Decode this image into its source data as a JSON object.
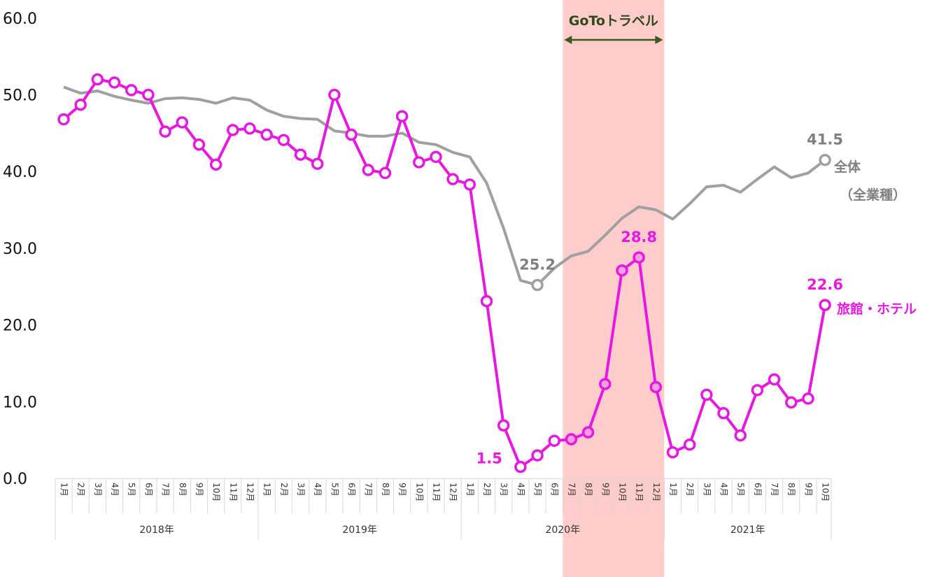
{
  "chart_data": {
    "type": "line",
    "ylim": [
      0,
      60
    ],
    "yticks": [
      "0.0",
      "10.0",
      "20.0",
      "30.0",
      "40.0",
      "50.0",
      "60.0"
    ],
    "x_month_labels": [
      "1月",
      "2月",
      "3月",
      "4月",
      "5月",
      "6月",
      "7月",
      "8月",
      "9月",
      "10月",
      "11月",
      "12月",
      "1月",
      "2月",
      "3月",
      "4月",
      "5月",
      "6月",
      "7月",
      "8月",
      "9月",
      "10月",
      "11月",
      "12月",
      "1月",
      "2月",
      "3月",
      "4月",
      "5月",
      "6月",
      "7月",
      "8月",
      "9月",
      "10月",
      "11月",
      "12月",
      "1月",
      "2月",
      "3月",
      "4月",
      "5月",
      "6月",
      "7月",
      "8月",
      "9月",
      "10月"
    ],
    "year_groups": [
      {
        "label": "2018年",
        "start": 0,
        "count": 12
      },
      {
        "label": "2019年",
        "start": 12,
        "count": 12
      },
      {
        "label": "2020年",
        "start": 24,
        "count": 12
      },
      {
        "label": "2021年",
        "start": 36,
        "count": 10
      }
    ],
    "series": [
      {
        "name": "全体",
        "name_line2": "（全業種）",
        "color": "#a0a0a0",
        "values": [
          51.0,
          50.2,
          50.5,
          49.8,
          49.3,
          48.9,
          49.5,
          49.6,
          49.4,
          48.9,
          49.6,
          49.3,
          48.0,
          47.2,
          46.9,
          46.8,
          45.3,
          45.0,
          44.6,
          44.6,
          45.0,
          43.8,
          43.5,
          42.5,
          41.9,
          38.5,
          32.6,
          25.8,
          25.2,
          27.4,
          29.0,
          29.6,
          31.7,
          33.9,
          35.4,
          35.0,
          33.8,
          35.8,
          38.0,
          38.2,
          37.3,
          39.0,
          40.6,
          39.2,
          39.8,
          41.5
        ],
        "markers": [
          28,
          45
        ]
      },
      {
        "name": "旅館・ホテル",
        "color": "#e619e0",
        "values": [
          46.8,
          48.7,
          52.0,
          51.6,
          50.6,
          50.0,
          45.2,
          46.4,
          43.5,
          40.9,
          45.4,
          45.6,
          44.8,
          44.1,
          42.2,
          41.0,
          50.0,
          44.8,
          40.2,
          39.8,
          47.2,
          41.2,
          41.9,
          39.0,
          38.3,
          23.1,
          6.9,
          1.5,
          3.0,
          4.9,
          5.1,
          6.0,
          12.3,
          27.1,
          28.8,
          11.9,
          3.4,
          4.4,
          10.9,
          8.5,
          5.6,
          11.5,
          12.9,
          9.9,
          10.4,
          22.6
        ],
        "markers": "all"
      }
    ],
    "annotations": [
      {
        "series": 0,
        "index": 28,
        "text": "25.2"
      },
      {
        "series": 0,
        "index": 45,
        "text": "41.5"
      },
      {
        "series": 1,
        "index": 27,
        "text": "1.5"
      },
      {
        "series": 1,
        "index": 34,
        "text": "28.8"
      },
      {
        "series": 1,
        "index": 45,
        "text": "22.6"
      }
    ],
    "highlight_band": {
      "label": "GoToトラベル",
      "start_index": 30,
      "end_index": 35,
      "color": "#ffcccc"
    }
  }
}
